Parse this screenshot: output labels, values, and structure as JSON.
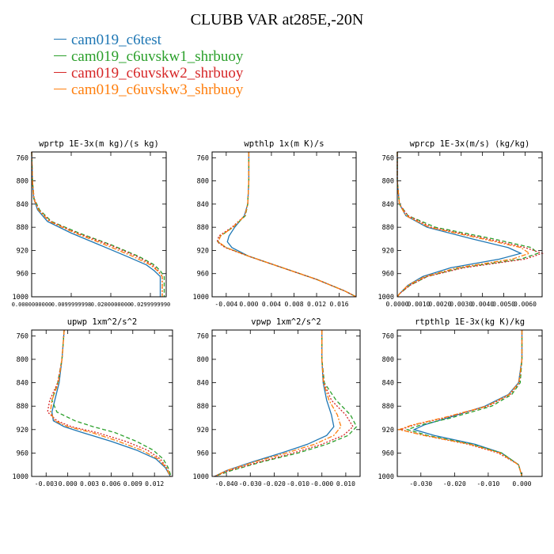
{
  "title": "CLUBB VAR at285E,-20N",
  "colors": {
    "blue": "#1f77b4",
    "green": "#2ca02c",
    "red": "#d62728",
    "orange": "#ff7f0e"
  },
  "legend": [
    {
      "label": "cam019_c6test",
      "color": "#1f77b4",
      "dash": ""
    },
    {
      "label": "cam019_c6uvskw1_shrbuoy",
      "color": "#2ca02c",
      "dash": "5,3"
    },
    {
      "label": "cam019_c6uvskw2_shrbuoy",
      "color": "#d62728",
      "dash": "2,2"
    },
    {
      "label": "cam019_c6uvskw3_shrbuoy",
      "color": "#ff7f0e",
      "dash": "6,2,2,2"
    }
  ],
  "chart_data": [
    {
      "type": "line",
      "title": "wprtp  1E-3x(m kg)/(s kg)",
      "xlim": [
        0.0,
        0.034
      ],
      "ylim": [
        1000,
        750
      ],
      "xticks": [
        0.0,
        0.0099999998,
        0.02,
        0.029999999
      ],
      "xtick_labels": [
        "0.0000000000",
        "0.0099999998",
        "0.0200000000",
        "0.0299999990"
      ],
      "yticks": [
        760,
        800,
        840,
        880,
        920,
        960,
        1000
      ],
      "y": [
        750,
        800,
        830,
        850,
        870,
        890,
        910,
        930,
        945,
        955,
        965,
        980,
        1000
      ],
      "series": [
        {
          "name": "cam019_c6test",
          "x": [
            0.0,
            0.0002,
            0.0005,
            0.0015,
            0.004,
            0.01,
            0.017,
            0.024,
            0.029,
            0.031,
            0.0325,
            0.0325,
            0.0325
          ]
        },
        {
          "name": "cam019_c6uvskw1_shrbuoy",
          "x": [
            0.0,
            0.0002,
            0.0006,
            0.002,
            0.005,
            0.012,
            0.02,
            0.027,
            0.031,
            0.0325,
            0.0335,
            0.0335,
            0.0335
          ]
        },
        {
          "name": "cam019_c6uvskw2_shrbuoy",
          "x": [
            0.0,
            0.0002,
            0.0006,
            0.0018,
            0.0048,
            0.0115,
            0.0195,
            0.0265,
            0.0305,
            0.032,
            0.033,
            0.033,
            0.033
          ]
        },
        {
          "name": "cam019_c6uvskw3_shrbuoy",
          "x": [
            0.0,
            0.0002,
            0.0005,
            0.0017,
            0.0045,
            0.011,
            0.0185,
            0.0255,
            0.03,
            0.0318,
            0.033,
            0.033,
            0.033
          ]
        }
      ]
    },
    {
      "type": "line",
      "title": "wpthlp  1x(m K)/s",
      "xlim": [
        -0.0065,
        0.019
      ],
      "ylim": [
        1000,
        750
      ],
      "xticks": [
        -0.004,
        0.0,
        0.004,
        0.008,
        0.012,
        0.016
      ],
      "xtick_labels": [
        "-0.004",
        "0.000",
        "0.004",
        "0.008",
        "0.012",
        "0.016"
      ],
      "yticks": [
        760,
        800,
        840,
        880,
        920,
        960,
        1000
      ],
      "y": [
        750,
        800,
        840,
        860,
        880,
        895,
        905,
        915,
        930,
        950,
        970,
        990,
        1000
      ],
      "series": [
        {
          "name": "cam019_c6test",
          "x": [
            0.0,
            0.0,
            -0.0002,
            -0.0008,
            -0.0025,
            -0.0035,
            -0.0038,
            -0.003,
            0.0,
            0.006,
            0.012,
            0.017,
            0.019
          ]
        },
        {
          "name": "cam019_c6uvskw1_shrbuoy",
          "x": [
            0.0,
            0.0,
            -0.0002,
            -0.0006,
            -0.0028,
            -0.005,
            -0.0055,
            -0.004,
            0.0,
            0.006,
            0.012,
            0.017,
            0.019
          ]
        },
        {
          "name": "cam019_c6uvskw2_shrbuoy",
          "x": [
            0.0,
            0.0,
            -0.0002,
            -0.0007,
            -0.003,
            -0.0053,
            -0.0056,
            -0.0042,
            0.0,
            0.006,
            0.012,
            0.017,
            0.019
          ]
        },
        {
          "name": "cam019_c6uvskw3_shrbuoy",
          "x": [
            0.0,
            0.0,
            -0.0002,
            -0.0007,
            -0.0028,
            -0.005,
            -0.0054,
            -0.004,
            0.0,
            0.006,
            0.012,
            0.017,
            0.019
          ]
        }
      ]
    },
    {
      "type": "line",
      "title": "wprcp  1E-3x(m/s) (kg/kg)",
      "xlim": [
        0.0,
        0.0068
      ],
      "ylim": [
        1000,
        750
      ],
      "xticks": [
        0.0,
        0.001,
        0.002,
        0.003,
        0.004,
        0.005,
        0.006
      ],
      "xtick_labels": [
        "0.0000",
        "0.0010",
        "0.0020",
        "0.0030",
        "0.0040",
        "0.0050",
        "0.0060"
      ],
      "yticks": [
        760,
        800,
        840,
        880,
        920,
        960,
        1000
      ],
      "y": [
        750,
        800,
        840,
        860,
        880,
        900,
        915,
        925,
        935,
        950,
        965,
        980,
        995,
        1000
      ],
      "series": [
        {
          "name": "cam019_c6test",
          "x": [
            0.0,
            0.0,
            0.0001,
            0.0004,
            0.0014,
            0.0035,
            0.0052,
            0.0058,
            0.0048,
            0.0025,
            0.0012,
            0.0005,
            0.0001,
            0.0
          ]
        },
        {
          "name": "cam019_c6uvskw1_shrbuoy",
          "x": [
            0.0,
            0.0,
            0.0001,
            0.0005,
            0.0018,
            0.0045,
            0.0063,
            0.0066,
            0.0058,
            0.003,
            0.0014,
            0.0006,
            0.0001,
            0.0
          ]
        },
        {
          "name": "cam019_c6uvskw2_shrbuoy",
          "x": [
            0.0,
            0.0,
            0.0001,
            0.0005,
            0.0016,
            0.0042,
            0.006,
            0.0068,
            0.006,
            0.0031,
            0.0014,
            0.0006,
            0.0001,
            0.0
          ]
        },
        {
          "name": "cam019_c6uvskw3_shrbuoy",
          "x": [
            0.0,
            0.0,
            0.0001,
            0.0004,
            0.0015,
            0.004,
            0.0058,
            0.0062,
            0.0054,
            0.0028,
            0.0013,
            0.0005,
            0.0001,
            0.0
          ]
        }
      ]
    },
    {
      "type": "line",
      "title": "upwp  1xm^2/s^2",
      "xlim": [
        -0.005,
        0.0145
      ],
      "ylim": [
        1000,
        750
      ],
      "xticks": [
        -0.003,
        0.0,
        0.003,
        0.006,
        0.009,
        0.012
      ],
      "xtick_labels": [
        "-0.003",
        "0.000",
        "0.003",
        "0.006",
        "0.009",
        "0.012"
      ],
      "yticks": [
        760,
        800,
        840,
        880,
        920,
        960,
        1000
      ],
      "y": [
        750,
        800,
        840,
        870,
        890,
        905,
        915,
        925,
        940,
        955,
        970,
        985,
        1000
      ],
      "series": [
        {
          "name": "cam019_c6test",
          "x": [
            -0.0005,
            -0.0008,
            -0.0012,
            -0.0018,
            -0.0022,
            -0.002,
            -0.0005,
            0.002,
            0.006,
            0.0095,
            0.0122,
            0.0135,
            0.0142
          ]
        },
        {
          "name": "cam019_c6uvskw1_shrbuoy",
          "x": [
            -0.0005,
            -0.0008,
            -0.0014,
            -0.0022,
            -0.0015,
            0.001,
            0.0035,
            0.0065,
            0.0095,
            0.0118,
            0.0132,
            0.0139,
            0.0143
          ]
        },
        {
          "name": "cam019_c6uvskw2_shrbuoy",
          "x": [
            -0.0005,
            -0.0008,
            -0.0014,
            -0.0025,
            -0.0028,
            -0.0015,
            0.0005,
            0.004,
            0.008,
            0.011,
            0.0128,
            0.0137,
            0.0142
          ]
        },
        {
          "name": "cam019_c6uvskw3_shrbuoy",
          "x": [
            -0.0005,
            -0.0008,
            -0.0013,
            -0.0022,
            -0.0024,
            -0.0018,
            0.0,
            0.0033,
            0.007,
            0.0102,
            0.0125,
            0.0136,
            0.0142
          ]
        }
      ]
    },
    {
      "type": "line",
      "title": "vpwp  1xm^2/s^2",
      "xlim": [
        -0.046,
        0.016
      ],
      "ylim": [
        1000,
        750
      ],
      "xticks": [
        -0.04,
        -0.03,
        -0.02,
        -0.01,
        0.0,
        0.01
      ],
      "xtick_labels": [
        "-0.040",
        "-0.030",
        "-0.020",
        "-0.010",
        "-0.000",
        "0.010"
      ],
      "yticks": [
        760,
        800,
        840,
        880,
        920,
        960,
        1000
      ],
      "y": [
        750,
        800,
        840,
        870,
        895,
        915,
        930,
        945,
        960,
        975,
        990,
        1000
      ],
      "series": [
        {
          "name": "cam019_c6test",
          "x": [
            0.0,
            0.0,
            0.0005,
            0.002,
            0.004,
            0.005,
            0.002,
            -0.006,
            -0.017,
            -0.029,
            -0.04,
            -0.045
          ]
        },
        {
          "name": "cam019_c6uvskw1_shrbuoy",
          "x": [
            0.0,
            0.0,
            0.001,
            0.006,
            0.012,
            0.0145,
            0.011,
            0.002,
            -0.01,
            -0.025,
            -0.038,
            -0.045
          ]
        },
        {
          "name": "cam019_c6uvskw2_shrbuoy",
          "x": [
            0.0,
            0.0,
            0.0008,
            0.004,
            0.01,
            0.013,
            0.009,
            0.0,
            -0.012,
            -0.026,
            -0.039,
            -0.045
          ]
        },
        {
          "name": "cam019_c6uvskw3_shrbuoy",
          "x": [
            0.0,
            0.0,
            0.0006,
            0.003,
            0.0065,
            0.008,
            0.005,
            -0.003,
            -0.015,
            -0.028,
            -0.04,
            -0.045
          ]
        }
      ]
    },
    {
      "type": "line",
      "title": "rtpthlp  1E-3x(kg K)/kg",
      "xlim": [
        -0.037,
        0.006
      ],
      "ylim": [
        1000,
        750
      ],
      "xticks": [
        -0.03,
        -0.02,
        -0.01,
        0.0
      ],
      "xtick_labels": [
        "-0.030",
        "-0.020",
        "-0.010",
        "0.000"
      ],
      "yticks": [
        760,
        800,
        840,
        880,
        920,
        960,
        1000
      ],
      "y": [
        750,
        800,
        840,
        860,
        880,
        900,
        912,
        920,
        930,
        945,
        960,
        980,
        1000
      ],
      "series": [
        {
          "name": "cam019_c6test",
          "x": [
            0.0,
            0.0,
            -0.001,
            -0.004,
            -0.011,
            -0.022,
            -0.029,
            -0.032,
            -0.026,
            -0.014,
            -0.006,
            -0.001,
            0.0
          ]
        },
        {
          "name": "cam019_c6uvskw1_shrbuoy",
          "x": [
            0.0,
            0.0,
            -0.0005,
            -0.003,
            -0.009,
            -0.021,
            -0.03,
            -0.034,
            -0.028,
            -0.015,
            -0.006,
            -0.001,
            0.0
          ]
        },
        {
          "name": "cam019_c6uvskw2_shrbuoy",
          "x": [
            0.0,
            0.0,
            -0.0008,
            -0.0035,
            -0.01,
            -0.023,
            -0.032,
            -0.036,
            -0.029,
            -0.016,
            -0.007,
            -0.001,
            0.0
          ]
        },
        {
          "name": "cam019_c6uvskw3_shrbuoy",
          "x": [
            0.0,
            0.0,
            -0.0009,
            -0.0038,
            -0.0105,
            -0.0235,
            -0.0325,
            -0.0365,
            -0.029,
            -0.0155,
            -0.0065,
            -0.001,
            0.0
          ]
        }
      ]
    }
  ]
}
